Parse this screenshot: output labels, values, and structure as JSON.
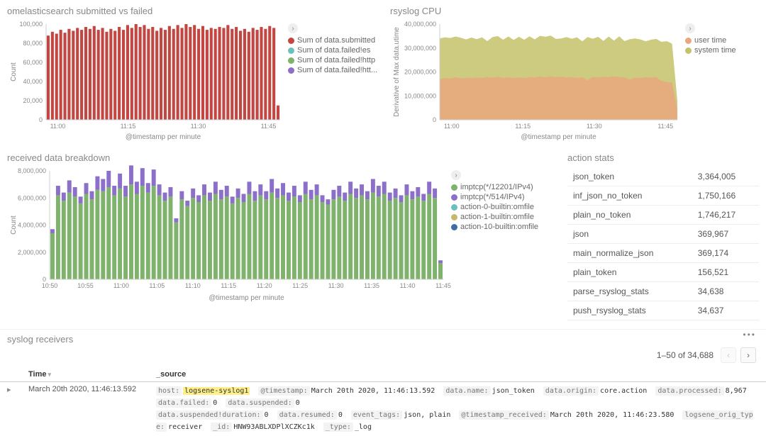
{
  "colors": {
    "axis": "#cfcfcf",
    "text": "#888888",
    "grid": "#f0f0f0"
  },
  "chart1": {
    "title": "omelasticsearch submitted vs failed",
    "type": "bar",
    "y_label": "Count",
    "x_label": "@timestamp per minute",
    "ylim": [
      0,
      100000
    ],
    "y_ticks": [
      0,
      20000,
      40000,
      60000,
      80000,
      100000
    ],
    "y_tick_labels": [
      "0",
      "20,000",
      "40,000",
      "60,000",
      "80,000",
      "100,000"
    ],
    "x_ticks": [
      "11:00",
      "11:15",
      "11:30",
      "11:45"
    ],
    "series": [
      {
        "label": "Sum of data.submitted",
        "color": "#c24642"
      },
      {
        "label": "Sum of data.failed!es",
        "color": "#6dbfbf"
      },
      {
        "label": "Sum of data.failed!http",
        "color": "#7eb26d"
      },
      {
        "label": "Sum of data.failed!htt...",
        "color": "#8b6fc9"
      }
    ],
    "bars": [
      88000,
      92000,
      90000,
      94000,
      91000,
      95000,
      93000,
      96000,
      94000,
      97000,
      95000,
      98000,
      94000,
      96000,
      92000,
      95000,
      93000,
      97000,
      94000,
      99000,
      96000,
      100000,
      97000,
      99000,
      95000,
      97000,
      93000,
      96000,
      94000,
      98000,
      95000,
      99000,
      96000,
      100000,
      97000,
      99000,
      95000,
      98000,
      94000,
      96000,
      95000,
      97000,
      96000,
      99000,
      95000,
      97000,
      93000,
      95000,
      92000,
      96000,
      94000,
      97000,
      95000,
      98000,
      96000,
      15000
    ]
  },
  "chart2": {
    "title": "rsyslog CPU",
    "type": "area",
    "y_label": "Derivative of Max data.utime",
    "x_label": "@timestamp per minute",
    "ylim": [
      0,
      40000000
    ],
    "y_ticks": [
      0,
      10000000,
      20000000,
      30000000,
      40000000
    ],
    "y_tick_labels": [
      "0",
      "10,000,000",
      "20,000,000",
      "30,000,000",
      "40,000,000"
    ],
    "x_ticks": [
      "11:00",
      "11:15",
      "11:30",
      "11:45"
    ],
    "series": [
      {
        "label": "user time",
        "color": "#e8a87c"
      },
      {
        "label": "system time",
        "color": "#c4c26a"
      }
    ],
    "user_time": [
      17000000,
      17500000,
      17200000,
      17800000,
      17300000,
      17600000,
      17400000,
      17700000,
      17500000,
      17900000,
      17600000,
      18000000,
      17500000,
      17800000,
      17400000,
      17700000,
      17500000,
      17900000,
      17600000,
      18100000,
      17700000,
      18200000,
      17800000,
      18000000,
      17600000,
      17900000,
      17500000,
      17800000,
      16500000,
      17900000,
      17700000,
      18000000,
      17800000,
      18100000,
      17900000,
      17700000,
      16800000,
      17600000,
      17500000,
      17800000,
      17600000,
      17900000,
      16200000,
      15800000,
      15500000,
      4000000
    ],
    "system_time": [
      34000000,
      34500000,
      34200000,
      34800000,
      34300000,
      33600000,
      34400000,
      33700000,
      34500000,
      32900000,
      34600000,
      35000000,
      33500000,
      34800000,
      33400000,
      34700000,
      33500000,
      34900000,
      33600000,
      35100000,
      34700000,
      35200000,
      33800000,
      34000000,
      34600000,
      33900000,
      34500000,
      32800000,
      34600000,
      33900000,
      34700000,
      33000000,
      34800000,
      33100000,
      34900000,
      32900000,
      33700000,
      34000000,
      33600000,
      32800000,
      33500000,
      33800000,
      32600000,
      32900000,
      31800000,
      8000000
    ]
  },
  "chart3": {
    "title": "received data breakdown",
    "type": "stacked-bar",
    "y_label": "Count",
    "x_label": "@timestamp per minute",
    "ylim": [
      0,
      8000000
    ],
    "y_ticks": [
      0,
      2000000,
      4000000,
      6000000,
      8000000
    ],
    "y_tick_labels": [
      "0",
      "2,000,000",
      "4,000,000",
      "6,000,000",
      "8,000,000"
    ],
    "x_ticks": [
      "10:50",
      "10:55",
      "11:00",
      "11:05",
      "11:10",
      "11:15",
      "11:20",
      "11:25",
      "11:30",
      "11:35",
      "11:40",
      "11:45"
    ],
    "series": [
      {
        "label": "imptcp(*/12201/IPv4)",
        "color": "#7eb26d"
      },
      {
        "label": "imptcp(*/514/IPv4)",
        "color": "#8b6fc9"
      },
      {
        "label": "action-0-builtin:omfile",
        "color": "#6dbfbf"
      },
      {
        "label": "action-1-builtin:omfile",
        "color": "#c9b76c"
      },
      {
        "label": "action-10-builtin:omfile",
        "color": "#3a6ea5"
      }
    ],
    "green": [
      3400000,
      6200000,
      5800000,
      6400000,
      6100000,
      5600000,
      6300000,
      5900000,
      6600000,
      6500000,
      6800000,
      6200000,
      6700000,
      6100000,
      7000000,
      6300000,
      6900000,
      6400000,
      6900000,
      6200000,
      5800000,
      6100000,
      4200000,
      5900000,
      5400000,
      6000000,
      5700000,
      6200000,
      5800000,
      6300000,
      5900000,
      6100000,
      5600000,
      6000000,
      5700000,
      6300000,
      5800000,
      6200000,
      5900000,
      6400000,
      6000000,
      6200000,
      5800000,
      6100000,
      5700000,
      6300000,
      5900000,
      6200000,
      5700000,
      5500000,
      5900000,
      6100000,
      5800000,
      6300000,
      6000000,
      6200000,
      5900000,
      6400000,
      6100000,
      6300000,
      5800000,
      6000000,
      5700000,
      6200000,
      5900000,
      6100000,
      5800000,
      6300000,
      6000000,
      1200000
    ],
    "purple": [
      300000,
      700000,
      600000,
      900000,
      700000,
      500000,
      800000,
      600000,
      1000000,
      900000,
      1200000,
      700000,
      1100000,
      800000,
      1400000,
      900000,
      1300000,
      700000,
      1200000,
      800000,
      600000,
      700000,
      300000,
      600000,
      400000,
      700000,
      500000,
      800000,
      600000,
      900000,
      700000,
      800000,
      500000,
      700000,
      600000,
      900000,
      700000,
      800000,
      600000,
      1000000,
      700000,
      900000,
      600000,
      800000,
      500000,
      900000,
      700000,
      800000,
      500000,
      400000,
      700000,
      800000,
      600000,
      900000,
      700000,
      800000,
      600000,
      1000000,
      800000,
      900000,
      600000,
      700000,
      500000,
      800000,
      600000,
      700000,
      500000,
      900000,
      700000,
      200000
    ]
  },
  "action_stats": {
    "title": "action stats",
    "rows": [
      {
        "name": "json_token",
        "value": "3,364,005"
      },
      {
        "name": "inf_json_no_token",
        "value": "1,750,166"
      },
      {
        "name": "plain_no_token",
        "value": "1,746,217"
      },
      {
        "name": "json",
        "value": "369,967"
      },
      {
        "name": "main_normalize_json",
        "value": "369,174"
      },
      {
        "name": "plain_token",
        "value": "156,521"
      },
      {
        "name": "parse_rsyslog_stats",
        "value": "34,638"
      },
      {
        "name": "push_rsyslog_stats",
        "value": "34,637"
      }
    ]
  },
  "receivers": {
    "title": "syslog receivers",
    "pager": "1–50 of 34,688",
    "columns": {
      "time": "Time",
      "source": "_source"
    },
    "row": {
      "time": "March 20th 2020, 11:46:13.592",
      "host_key": "host:",
      "host_val": "logsene-syslog1",
      "ts_key": "@timestamp:",
      "ts_val": "March 20th 2020, 11:46:13.592",
      "dname_key": "data.name:",
      "dname_val": "json_token",
      "dorigin_key": "data.origin:",
      "dorigin_val": "core.action",
      "dproc_key": "data.processed:",
      "dproc_val": "8,967",
      "dfail_key": "data.failed:",
      "dfail_val": "0",
      "dsusp_key": "data.suspended:",
      "dsusp_val": "0",
      "dsuspdur_key": "data.suspended!duration:",
      "dsuspdur_val": "0",
      "dres_key": "data.resumed:",
      "dres_val": "0",
      "etag_key": "event_tags:",
      "etag_val": "json, plain",
      "tsr_key": "@timestamp_received:",
      "tsr_val": "March 20th 2020, 11:46:23.580",
      "lot_key": "logsene_orig_type:",
      "lot_val": "receiver",
      "id_key": "_id:",
      "id_val": "HNW93ABLXDPlXCZKc1k",
      "type_key": "_type:",
      "type_val": "_log"
    }
  }
}
